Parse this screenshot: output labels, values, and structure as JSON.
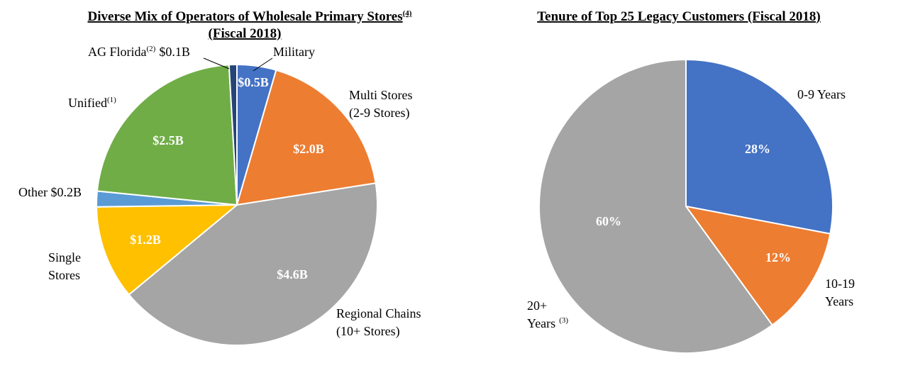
{
  "chart_data": [
    {
      "type": "pie",
      "title": "Diverse Mix of Operators of Wholesale Primary Stores",
      "title_note": "(4)",
      "subtitle": "(Fiscal 2018)",
      "unit": "$B",
      "slices": [
        {
          "name": "Military",
          "value": 0.5,
          "value_label": "$0.5B",
          "color": "#4472C4"
        },
        {
          "name": "Multi Stores (2-9 Stores)",
          "value": 2.0,
          "value_label": "$2.0B",
          "color": "#ED7D31"
        },
        {
          "name": "Regional Chains (10+ Stores)",
          "value": 4.6,
          "value_label": "$4.6B",
          "color": "#A5A5A5"
        },
        {
          "name": "Single Stores",
          "value": 1.2,
          "value_label": "$1.2B",
          "color": "#FFC000"
        },
        {
          "name": "Other",
          "value": 0.2,
          "value_label": "$0.2B",
          "color": "#5B9BD5"
        },
        {
          "name": "Unified",
          "value": 2.5,
          "value_label": "$2.5B",
          "color": "#70AD47"
        },
        {
          "name": "AG Florida",
          "value": 0.1,
          "value_label": "$0.1B",
          "color": "#264478"
        }
      ],
      "labels": {
        "military": "Military",
        "multi_1": "Multi Stores",
        "multi_2": "(2-9 Stores)",
        "regional_1": "Regional Chains",
        "regional_2": "(10+ Stores)",
        "single_1": "Single",
        "single_2": "Stores",
        "other": "Other $0.2B",
        "unified": "Unified",
        "unified_note": "(1)",
        "ag_name": "AG Florida",
        "ag_note": "(2)",
        "ag_value": "$0.1B"
      }
    },
    {
      "type": "pie",
      "title": "Tenure of Top 25 Legacy Customers (Fiscal 2018)",
      "unit": "%",
      "slices": [
        {
          "name": "0-9 Years",
          "value": 28,
          "value_label": "28%",
          "color": "#4472C4"
        },
        {
          "name": "10-19 Years",
          "value": 12,
          "value_label": "12%",
          "color": "#ED7D31"
        },
        {
          "name": "20+ Years",
          "value": 60,
          "value_label": "60%",
          "color": "#A5A5A5"
        }
      ],
      "labels": {
        "y0_9": "0-9 Years",
        "y10_1": "10-19",
        "y10_2": "Years",
        "y20_1": "20+",
        "y20_2": "Years",
        "y20_note": "(3)"
      }
    }
  ]
}
